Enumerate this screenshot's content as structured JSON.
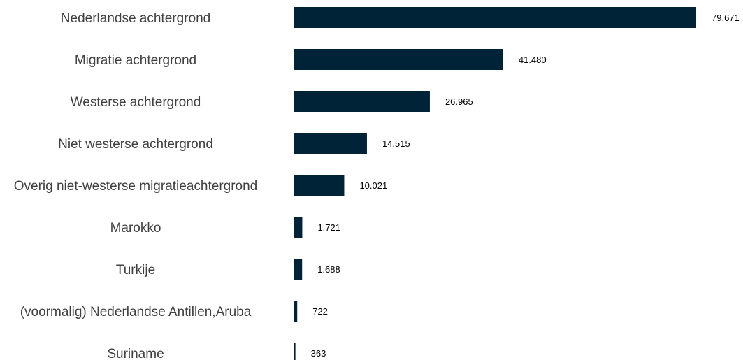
{
  "chart_data": {
    "type": "bar",
    "orientation": "horizontal",
    "categories": [
      "Nederlandse achtergrond",
      "Migratie achtergrond",
      "Westerse achtergrond",
      "Niet westerse achtergrond",
      "Overig niet-westerse migratieachtergrond",
      "Marokko",
      "Turkije",
      "(voormalig) Nederlandse Antillen,Aruba",
      "Suriname"
    ],
    "values": [
      79671,
      41480,
      26965,
      14515,
      10021,
      1721,
      1688,
      722,
      363
    ],
    "value_labels": [
      "79.671",
      "41.480",
      "26.965",
      "14.515",
      "10.021",
      "1.721",
      "1.688",
      "722",
      "363"
    ],
    "bar_color": "#002338",
    "title": "",
    "xlabel": "",
    "ylabel": "",
    "xlim": [
      0,
      79671
    ],
    "grid": false,
    "legend": "none"
  }
}
